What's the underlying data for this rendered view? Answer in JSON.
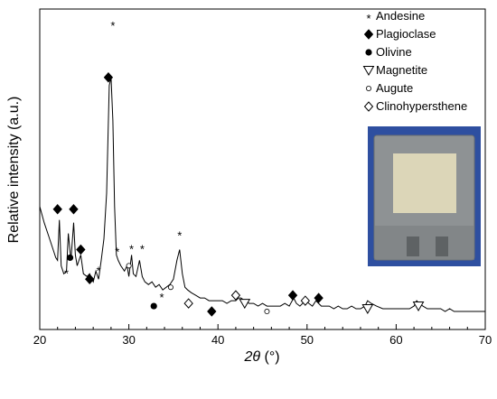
{
  "chart_data": {
    "type": "line",
    "xlabel_symbol": "2θ",
    "xlabel_unit": "(°)",
    "ylabel": "Relative intensity (a.u.)",
    "xlim": [
      20,
      70
    ],
    "ylim": [
      0,
      100
    ],
    "xticks": [
      20,
      30,
      40,
      50,
      60,
      70
    ],
    "x_tick_labels": [
      "20",
      "30",
      "40",
      "50",
      "60",
      "70"
    ],
    "y_ticks_labeled": false,
    "grid": false,
    "legend_position": "top-right",
    "legend": [
      {
        "symbol": "star",
        "label": "Andesine"
      },
      {
        "symbol": "diamond-filled",
        "label": "Plagioclase"
      },
      {
        "symbol": "circle-filled",
        "label": "Olivine"
      },
      {
        "symbol": "triangle-down-open",
        "label": "Magnetite"
      },
      {
        "symbol": "circle-open",
        "label": "Augute"
      },
      {
        "symbol": "diamond-open",
        "label": "Clinohypersthene"
      }
    ],
    "series": [
      {
        "x": [
          20.0,
          20.5,
          21.0,
          21.5,
          21.8,
          22.0,
          22.2,
          22.4,
          22.7,
          23.0,
          23.2,
          23.5,
          23.8,
          24.0,
          24.2,
          24.6,
          24.9,
          25.3,
          25.6,
          26.0,
          26.3,
          26.6,
          26.9,
          27.2,
          27.5,
          27.8,
          28.0,
          28.2,
          28.4,
          28.6,
          28.8,
          29.1,
          29.5,
          29.8,
          30.0,
          30.3,
          30.5,
          30.8,
          31.2,
          31.5,
          31.8,
          32.2,
          32.6,
          33.0,
          33.4,
          33.8,
          34.2,
          34.6,
          35.0,
          35.4,
          35.7,
          36.0,
          36.3,
          36.6,
          37.0,
          37.5,
          38.0,
          38.5,
          39.0,
          39.5,
          40.0,
          40.5,
          41.0,
          41.5,
          42.0,
          42.3,
          42.6,
          43.0,
          43.5,
          44.0,
          44.5,
          45.0,
          45.5,
          46.0,
          46.5,
          47.0,
          47.5,
          48.0,
          48.5,
          48.8,
          49.2,
          49.8,
          50.2,
          50.6,
          51.0,
          51.3,
          51.6,
          52.0,
          52.5,
          53.0,
          53.5,
          54.0,
          54.5,
          55.0,
          55.5,
          56.0,
          56.5,
          56.8,
          57.2,
          57.8,
          58.5,
          59.0,
          59.5,
          60.0,
          60.5,
          61.0,
          61.5,
          62.0,
          62.3,
          62.6,
          63.0,
          63.5,
          64.0,
          64.5,
          65.0,
          65.5,
          66.0,
          66.5,
          67.0,
          67.5,
          68.0,
          68.5,
          69.0,
          69.5,
          70.0
        ],
        "y": [
          40,
          34,
          29,
          24,
          21,
          20,
          35,
          18,
          15,
          16,
          30,
          20,
          34,
          22,
          18,
          22,
          15,
          14,
          15,
          12,
          16,
          13,
          20,
          28,
          45,
          85,
          88,
          72,
          40,
          22,
          20,
          18,
          16,
          18,
          14,
          22,
          15,
          14,
          20,
          14,
          12,
          11,
          12,
          10,
          11,
          9,
          10,
          11,
          13,
          20,
          24,
          15,
          10,
          9,
          8,
          7,
          6,
          6,
          5,
          5,
          5,
          5,
          4,
          5,
          5,
          6,
          6,
          5,
          4,
          4,
          3,
          4,
          3,
          3,
          3,
          3,
          4,
          3,
          6,
          4,
          3,
          5,
          4,
          3,
          5,
          4,
          3,
          3,
          3,
          2,
          3,
          2,
          2,
          3,
          2,
          2,
          3,
          5,
          4,
          3,
          2,
          2,
          2,
          2,
          2,
          2,
          2,
          3,
          5,
          4,
          3,
          2,
          2,
          2,
          2,
          1,
          2,
          1,
          1,
          1,
          1,
          1,
          1,
          1,
          1
        ]
      }
    ],
    "annotations": [
      {
        "symbol": "diamond-filled",
        "x": 22.0,
        "y": 39
      },
      {
        "symbol": "diamond-filled",
        "x": 23.8,
        "y": 39
      },
      {
        "symbol": "circle-filled",
        "x": 23.4,
        "y": 21
      },
      {
        "symbol": "star",
        "x": 23.0,
        "y": 16
      },
      {
        "symbol": "diamond-filled",
        "x": 24.6,
        "y": 24
      },
      {
        "symbol": "diamond-filled",
        "x": 25.6,
        "y": 13
      },
      {
        "symbol": "star",
        "x": 26.6,
        "y": 17
      },
      {
        "symbol": "diamond-filled",
        "x": 27.7,
        "y": 88
      },
      {
        "symbol": "star",
        "x": 28.2,
        "y": 108
      },
      {
        "symbol": "star",
        "x": 28.7,
        "y": 24
      },
      {
        "symbol": "circle-open",
        "x": 30.0,
        "y": 18
      },
      {
        "symbol": "star",
        "x": 30.3,
        "y": 25
      },
      {
        "symbol": "star",
        "x": 31.5,
        "y": 25
      },
      {
        "symbol": "circle-open",
        "x": 34.7,
        "y": 10
      },
      {
        "symbol": "star",
        "x": 33.7,
        "y": 7
      },
      {
        "symbol": "circle-filled",
        "x": 32.8,
        "y": 3
      },
      {
        "symbol": "star",
        "x": 35.7,
        "y": 30
      },
      {
        "symbol": "diamond-open",
        "x": 36.7,
        "y": 4
      },
      {
        "symbol": "diamond-filled",
        "x": 39.3,
        "y": 1
      },
      {
        "symbol": "diamond-open",
        "x": 42.0,
        "y": 7
      },
      {
        "symbol": "triangle-down-open",
        "x": 43.0,
        "y": 4
      },
      {
        "symbol": "circle-open",
        "x": 45.5,
        "y": 1
      },
      {
        "symbol": "diamond-filled",
        "x": 48.4,
        "y": 7
      },
      {
        "symbol": "diamond-open",
        "x": 49.8,
        "y": 5
      },
      {
        "symbol": "diamond-filled",
        "x": 51.3,
        "y": 6
      },
      {
        "symbol": "triangle-down-open",
        "x": 56.8,
        "y": 2
      },
      {
        "symbol": "triangle-down-open",
        "x": 62.5,
        "y": 3
      }
    ],
    "inset_photo_description": "photograph of a grey square plate with a beige square coating in the centre"
  }
}
